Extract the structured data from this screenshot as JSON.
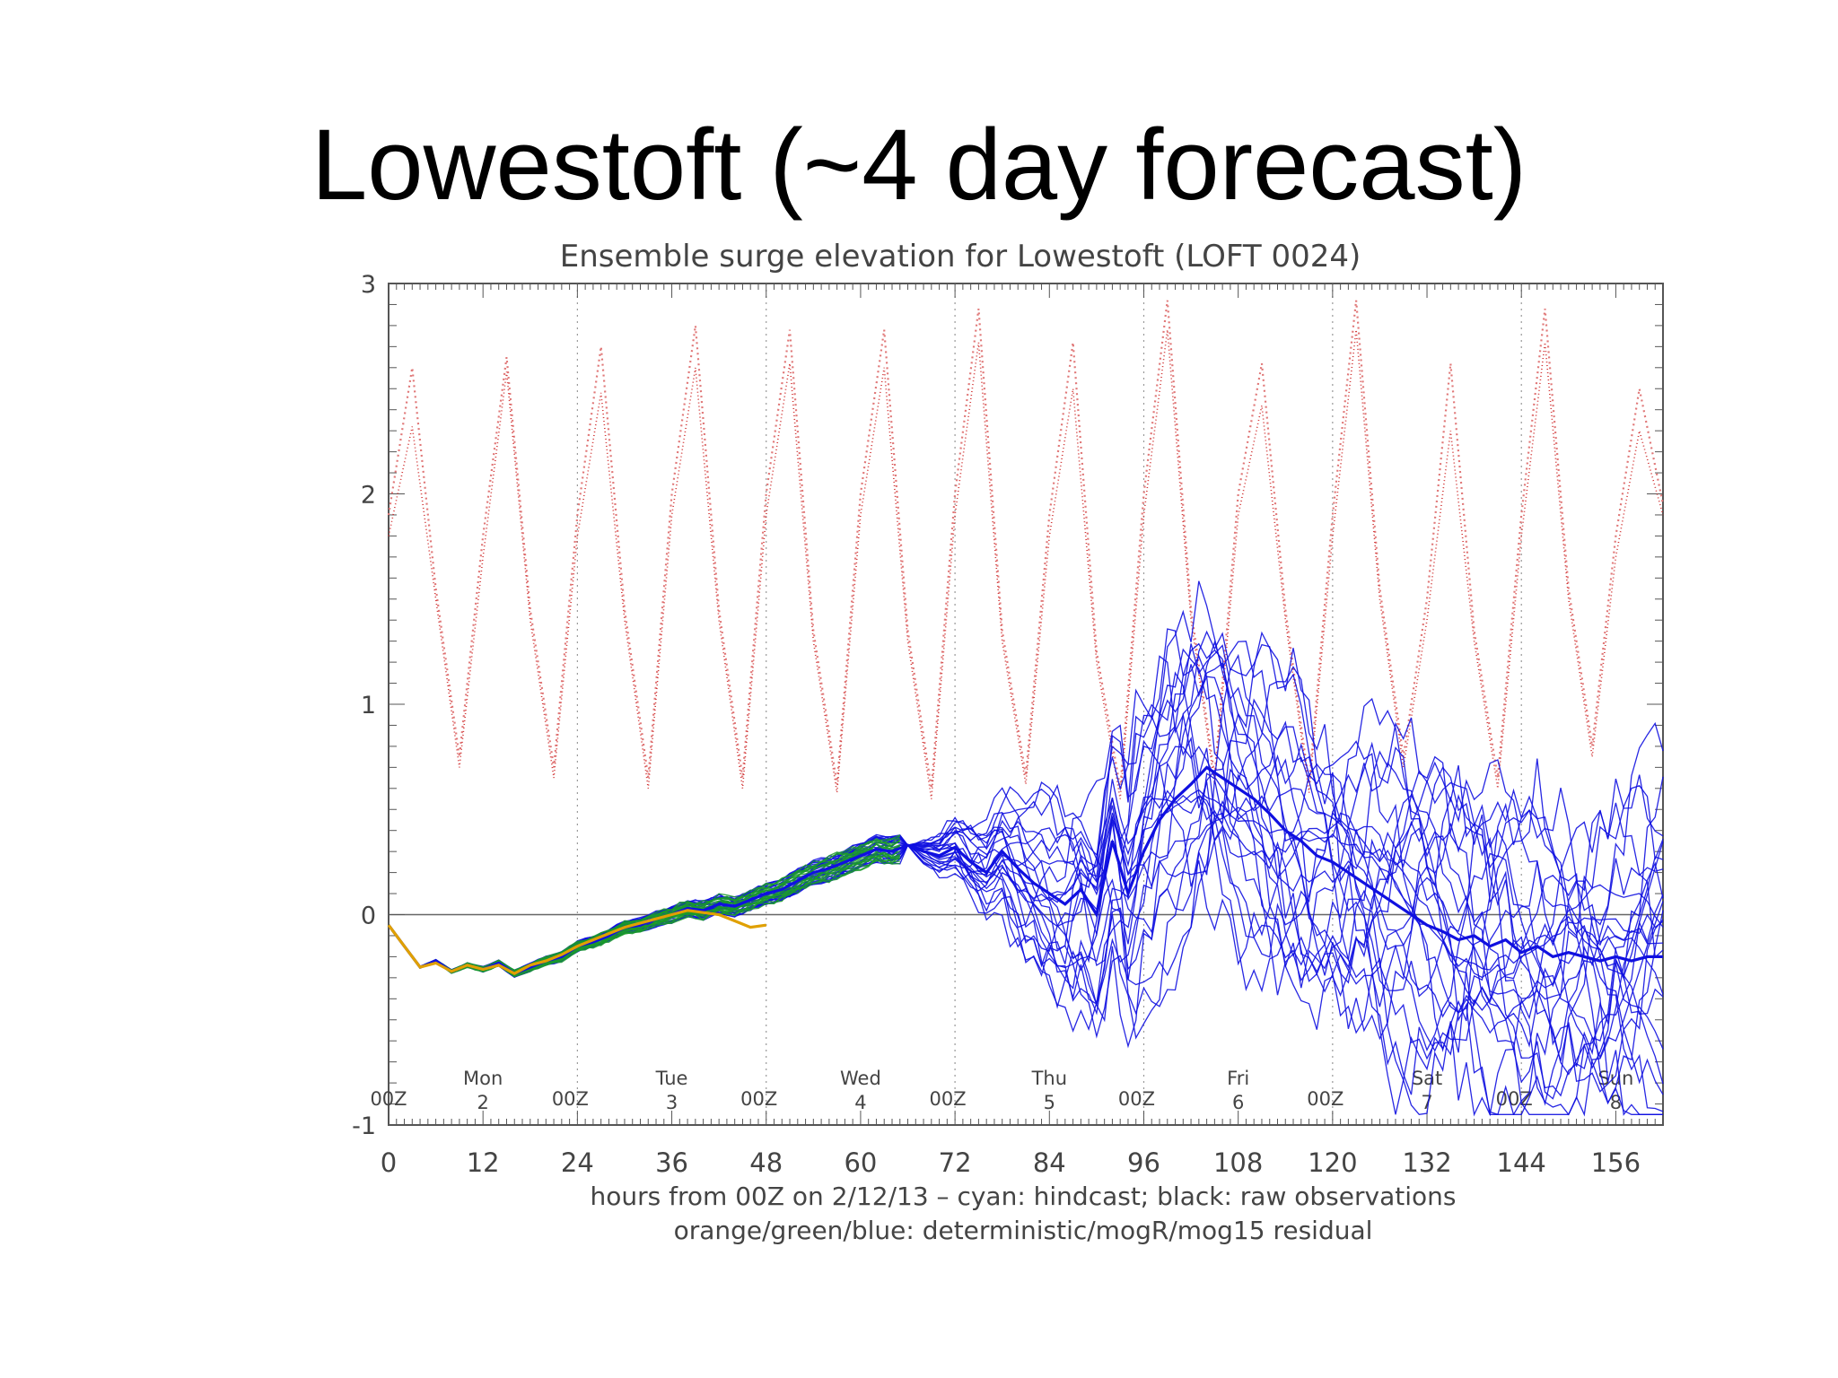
{
  "slide": {
    "title": "Lowestoft (~4 day forecast)"
  },
  "chart_data": {
    "type": "line",
    "title": "Ensemble surge elevation for Lowestoft (LOFT 0024)",
    "xlabel": "hours from 00Z on 2/12/13  –  cyan: hindcast; black: raw observations",
    "xlabel2": "orange/green/blue: deterministic/mogR/mog15 residual",
    "xlim": [
      0,
      162
    ],
    "ylim": [
      -1,
      3
    ],
    "xticks": [
      0,
      12,
      24,
      36,
      48,
      60,
      72,
      84,
      96,
      108,
      120,
      132,
      144,
      156
    ],
    "xtick_labels": [
      "0",
      "12",
      "24",
      "36",
      "48",
      "60",
      "72",
      "84",
      "96",
      "108",
      "120",
      "132",
      "144",
      "156"
    ],
    "yticks": [
      -1,
      0,
      1,
      2,
      3
    ],
    "ytick_labels": [
      "-1",
      "0",
      "1",
      "2",
      "3"
    ],
    "midnight_hours": [
      0,
      24,
      48,
      72,
      96,
      120,
      144
    ],
    "midnight_label": "00Z",
    "days": [
      {
        "hour": 12,
        "name": "Mon",
        "num": "2"
      },
      {
        "hour": 36,
        "name": "Tue",
        "num": "3"
      },
      {
        "hour": 60,
        "name": "Wed",
        "num": "4"
      },
      {
        "hour": 84,
        "name": "Thu",
        "num": "5"
      },
      {
        "hour": 108,
        "name": "Fri",
        "num": "6"
      },
      {
        "hour": 132,
        "name": "Sat",
        "num": "7"
      },
      {
        "hour": 156,
        "name": "Sun",
        "num": "8"
      }
    ],
    "colors": {
      "tide": "#d03030",
      "tide_dotted": "#e07878",
      "mog15": "#1010e0",
      "mogR": "#1a9a2a",
      "deterministic": "#e0a000",
      "axis": "#555555",
      "grid": "#999999"
    },
    "series": [
      {
        "kind": "tide",
        "x": [
          0,
          3,
          6,
          9,
          12,
          15,
          18,
          21,
          24,
          27,
          30,
          33,
          36,
          39,
          42,
          45,
          48,
          51,
          54,
          57,
          60,
          63,
          66,
          69,
          72,
          75,
          78,
          81,
          84,
          87,
          90,
          93,
          96,
          99,
          102,
          105,
          108,
          111,
          114,
          117,
          120,
          123,
          126,
          129,
          132,
          135,
          138,
          141,
          144,
          147,
          150,
          153,
          156,
          159,
          162
        ],
        "values": [
          1.8,
          2.32,
          1.5,
          0.7,
          1.7,
          2.58,
          1.4,
          0.65,
          1.8,
          2.48,
          1.4,
          0.6,
          1.9,
          2.6,
          1.4,
          0.6,
          1.9,
          2.62,
          1.3,
          0.58,
          1.9,
          2.6,
          1.3,
          0.55,
          1.9,
          2.72,
          1.3,
          0.62,
          1.8,
          2.5,
          1.2,
          0.55,
          1.9,
          2.78,
          1.4,
          0.62,
          1.9,
          2.42,
          1.4,
          0.58,
          1.8,
          2.78,
          1.5,
          0.7,
          1.4,
          2.3,
          1.3,
          0.6,
          1.8,
          2.72,
          1.5,
          0.75,
          1.7,
          2.3,
          1.9
        ]
      },
      {
        "kind": "tide_dotted",
        "x": [
          0,
          3,
          6,
          9,
          12,
          15,
          18,
          21,
          24,
          27,
          30,
          33,
          36,
          39,
          42,
          45,
          48,
          51,
          54,
          57,
          60,
          63,
          66,
          69,
          72,
          75,
          78,
          81,
          84,
          87,
          90,
          93,
          96,
          99,
          102,
          105,
          108,
          111,
          114,
          117,
          120,
          123,
          126,
          129,
          132,
          135,
          138,
          141,
          144,
          147,
          150,
          153,
          156,
          159,
          162
        ],
        "values": [
          1.9,
          2.6,
          1.55,
          0.75,
          1.8,
          2.65,
          1.45,
          0.7,
          1.9,
          2.7,
          1.45,
          0.65,
          2.0,
          2.8,
          1.45,
          0.65,
          2.0,
          2.78,
          1.35,
          0.62,
          2.0,
          2.78,
          1.35,
          0.6,
          2.0,
          2.88,
          1.35,
          0.66,
          1.9,
          2.72,
          1.25,
          0.6,
          2.0,
          2.92,
          1.45,
          0.66,
          2.0,
          2.62,
          1.45,
          0.62,
          1.9,
          2.92,
          1.55,
          0.75,
          1.5,
          2.62,
          1.35,
          0.65,
          1.9,
          2.88,
          1.55,
          0.8,
          1.8,
          2.5,
          1.95
        ]
      },
      {
        "kind": "mog15_mean",
        "x": [
          0,
          2,
          4,
          6,
          8,
          10,
          12,
          14,
          16,
          18,
          20,
          22,
          24,
          26,
          28,
          30,
          32,
          34,
          36,
          38,
          40,
          42,
          44,
          46,
          48,
          50,
          52,
          54,
          56,
          58,
          60,
          62,
          64,
          66,
          68,
          70,
          72,
          74,
          76,
          78,
          80,
          82,
          84,
          86,
          88,
          90,
          92,
          94,
          96,
          98,
          100,
          102,
          104,
          106,
          108,
          110,
          112,
          114,
          116,
          118,
          120,
          122,
          124,
          126,
          128,
          130,
          132,
          134,
          136,
          138,
          140,
          142,
          144,
          146,
          148,
          150,
          152,
          154,
          156,
          158,
          160,
          162
        ],
        "values": [
          -0.05,
          -0.15,
          -0.25,
          -0.22,
          -0.27,
          -0.24,
          -0.26,
          -0.23,
          -0.28,
          -0.25,
          -0.22,
          -0.2,
          -0.15,
          -0.13,
          -0.1,
          -0.06,
          -0.05,
          -0.02,
          0,
          0.03,
          0.02,
          0.05,
          0.04,
          0.07,
          0.1,
          0.12,
          0.16,
          0.2,
          0.22,
          0.25,
          0.28,
          0.31,
          0.3,
          0.33,
          0.3,
          0.28,
          0.32,
          0.25,
          0.2,
          0.3,
          0.22,
          0.15,
          0.1,
          0.05,
          0.12,
          0.0,
          0.35,
          0.1,
          0.3,
          0.45,
          0.55,
          0.62,
          0.7,
          0.65,
          0.6,
          0.55,
          0.48,
          0.4,
          0.35,
          0.28,
          0.25,
          0.2,
          0.15,
          0.1,
          0.05,
          0.0,
          -0.05,
          -0.08,
          -0.12,
          -0.1,
          -0.15,
          -0.12,
          -0.18,
          -0.15,
          -0.2,
          -0.18,
          -0.2,
          -0.22,
          -0.2,
          -0.22,
          -0.2,
          -0.2
        ]
      },
      {
        "kind": "deterministic",
        "x": [
          0,
          2,
          4,
          6,
          8,
          10,
          12,
          14,
          16,
          18,
          20,
          22,
          24,
          26,
          28,
          30,
          32,
          34,
          36,
          38,
          40,
          42,
          44,
          46,
          48
        ],
        "values": [
          -0.05,
          -0.15,
          -0.25,
          -0.23,
          -0.27,
          -0.24,
          -0.26,
          -0.24,
          -0.28,
          -0.24,
          -0.22,
          -0.19,
          -0.15,
          -0.12,
          -0.09,
          -0.06,
          -0.04,
          -0.02,
          0,
          0.02,
          0.01,
          0.0,
          -0.03,
          -0.06,
          -0.05
        ]
      }
    ]
  }
}
